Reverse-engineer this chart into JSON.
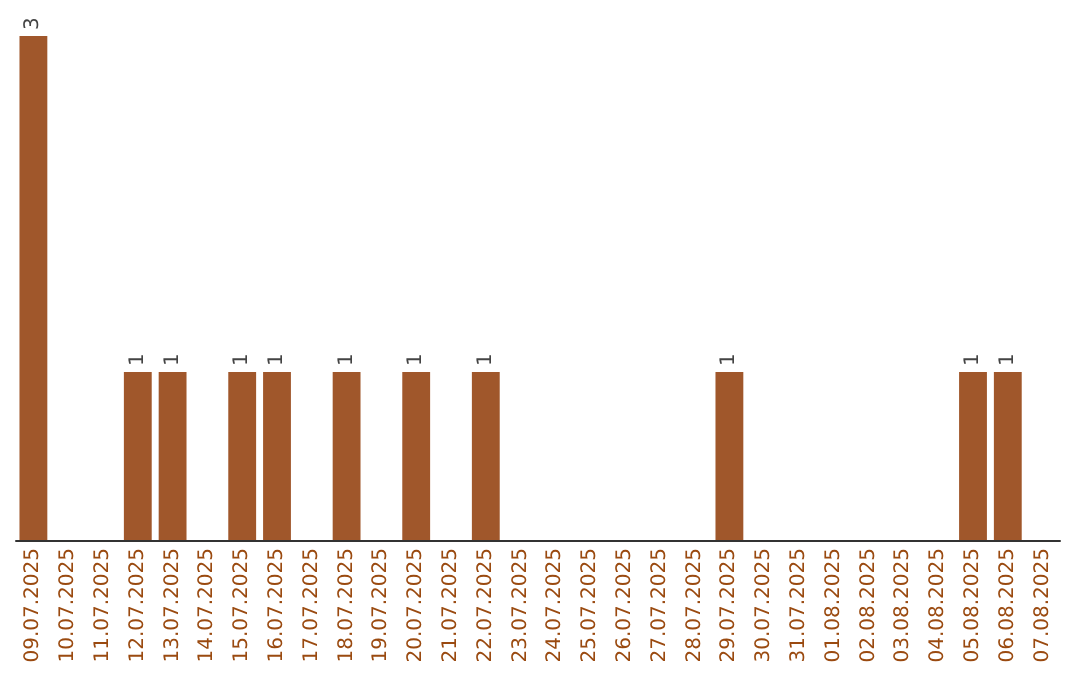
{
  "chart_data": {
    "type": "bar",
    "categories": [
      "09.07.2025",
      "10.07.2025",
      "11.07.2025",
      "12.07.2025",
      "13.07.2025",
      "14.07.2025",
      "15.07.2025",
      "16.07.2025",
      "17.07.2025",
      "18.07.2025",
      "19.07.2025",
      "20.07.2025",
      "21.07.2025",
      "22.07.2025",
      "23.07.2025",
      "24.07.2025",
      "25.07.2025",
      "26.07.2025",
      "27.07.2025",
      "28.07.2025",
      "29.07.2025",
      "30.07.2025",
      "31.07.2025",
      "01.08.2025",
      "02.08.2025",
      "03.08.2025",
      "04.08.2025",
      "05.08.2025",
      "06.08.2025",
      "07.08.2025"
    ],
    "values": [
      3,
      0,
      0,
      1,
      1,
      0,
      1,
      1,
      0,
      1,
      0,
      1,
      0,
      1,
      0,
      0,
      0,
      0,
      0,
      0,
      1,
      0,
      0,
      0,
      0,
      0,
      0,
      1,
      1,
      0
    ],
    "value_labels": [
      "3",
      null,
      null,
      "1",
      "1",
      null,
      "1",
      "1",
      null,
      "1",
      null,
      "1",
      null,
      "1",
      null,
      null,
      null,
      null,
      null,
      null,
      "1",
      null,
      null,
      null,
      null,
      null,
      null,
      "1",
      "1",
      null
    ],
    "color": "#a0572b",
    "grid": false
  }
}
